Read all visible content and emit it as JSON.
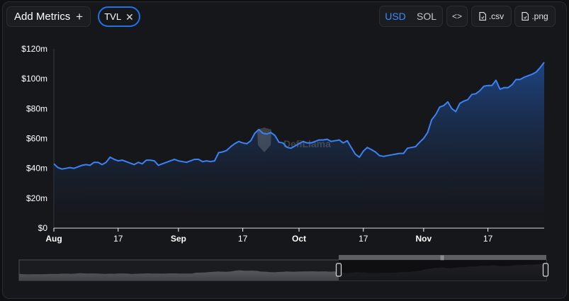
{
  "toolbar": {
    "add_metrics_label": "Add Metrics",
    "add_metrics_icon": "plus-icon",
    "metric_chip_label": "TVL",
    "metric_chip_icon": "close-icon",
    "currency_options": [
      "USD",
      "SOL"
    ],
    "currency_selected": "USD",
    "embed_label": "<>",
    "csv_label": ".csv",
    "png_label": ".png"
  },
  "watermark": "DefiLlama",
  "colors": {
    "accent": "#2172e5",
    "line": "#3b82f6",
    "fill_top": "#1e3f7a",
    "background": "#16171a"
  },
  "chart_data": {
    "type": "area",
    "series": [
      {
        "values": [
          43,
          40.5,
          39.5,
          40,
          40.5,
          40,
          41,
          42,
          42.5,
          42,
          44,
          44,
          42.5,
          44,
          47.5,
          46,
          45,
          45.5,
          44.5,
          43.5,
          42.5,
          44,
          43,
          45.5,
          45.5,
          45,
          42,
          43,
          44,
          45,
          46,
          45,
          44.5,
          44,
          45,
          46,
          46,
          44.5,
          45,
          44.5,
          45,
          50.5,
          51,
          52,
          54.5,
          56.5,
          58,
          57,
          56.5,
          58.5,
          63.5,
          66,
          63.5,
          63,
          64,
          62,
          57.5,
          57,
          54,
          53.5,
          55,
          56.5,
          58,
          57,
          57,
          58,
          59,
          59,
          59.5,
          58,
          58.5,
          59,
          57,
          58.5,
          54,
          49.5,
          47.5,
          51.5,
          54,
          52.5,
          51,
          48.5,
          48,
          48.5,
          49,
          49.5,
          50,
          50,
          53.5,
          54,
          54.5,
          57.5,
          60,
          64,
          72.5,
          76,
          81,
          82,
          84.5,
          80,
          78,
          83.5,
          85,
          86,
          89.5,
          90,
          92,
          95,
          95.5,
          95.5,
          99,
          93,
          94,
          94,
          96,
          99.5,
          99.5,
          101,
          102,
          103,
          104.5,
          107.5,
          111
        ],
        "color": "#3b82f6"
      }
    ],
    "x_ticks": [
      "Aug",
      "17",
      "Sep",
      "17",
      "Oct",
      "17",
      "Nov",
      "17"
    ],
    "y_ticks": [
      "$0",
      "$20m",
      "$40m",
      "$60m",
      "$80m",
      "$100m",
      "$120m"
    ],
    "ylim": [
      0,
      120
    ],
    "grid": false,
    "legend": "none"
  }
}
